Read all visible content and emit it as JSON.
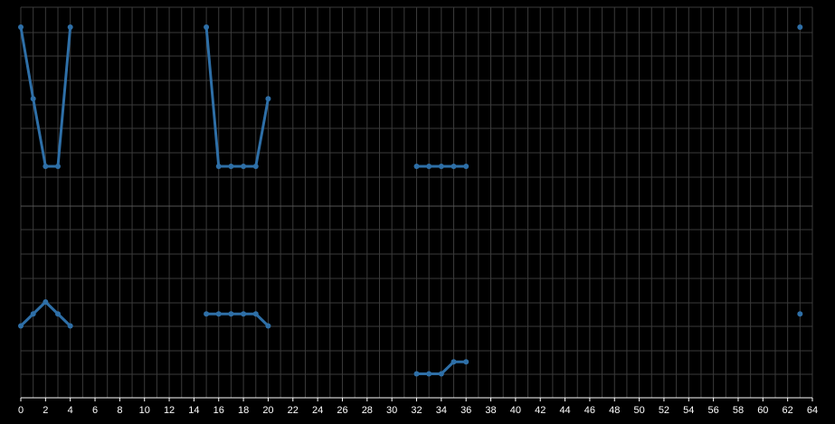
{
  "chart_data": [
    {
      "type": "line",
      "panel": "top",
      "xlim": [
        0,
        64
      ],
      "grid": true,
      "series": [
        {
          "segments": [
            [
              [
                0,
                5
              ],
              [
                1,
                3.2
              ],
              [
                2,
                1.5
              ],
              [
                3,
                1.5
              ],
              [
                4,
                5
              ]
            ],
            [
              [
                15,
                5
              ],
              [
                16,
                1.5
              ],
              [
                17,
                1.5
              ],
              [
                18,
                1.5
              ],
              [
                19,
                1.5
              ],
              [
                20,
                3.2
              ]
            ],
            [
              [
                32,
                1.5
              ],
              [
                33,
                1.5
              ],
              [
                34,
                1.5
              ],
              [
                35,
                1.5
              ],
              [
                36,
                1.5
              ]
            ],
            [
              [
                63,
                5
              ]
            ]
          ]
        }
      ]
    },
    {
      "type": "line",
      "panel": "bottom",
      "xlim": [
        0,
        64
      ],
      "grid": true,
      "xticks": [
        "0",
        "2",
        "4",
        "6",
        "8",
        "10",
        "12",
        "14",
        "16",
        "18",
        "20",
        "22",
        "24",
        "26",
        "28",
        "30",
        "32",
        "34",
        "36",
        "38",
        "40",
        "42",
        "44",
        "46",
        "48",
        "50",
        "52",
        "54",
        "56",
        "58",
        "60",
        "62",
        "64"
      ],
      "series": [
        {
          "segments": [
            [
              [
                0,
                3
              ],
              [
                1,
                3.5
              ],
              [
                2,
                4
              ],
              [
                3,
                3.5
              ],
              [
                4,
                3
              ]
            ],
            [
              [
                15,
                3.5
              ],
              [
                16,
                3.5
              ],
              [
                17,
                3.5
              ],
              [
                18,
                3.5
              ],
              [
                19,
                3.5
              ],
              [
                20,
                3
              ]
            ],
            [
              [
                32,
                1
              ],
              [
                33,
                1
              ],
              [
                34,
                1
              ],
              [
                35,
                1.5
              ],
              [
                36,
                1.5
              ]
            ],
            [
              [
                63,
                3.5
              ]
            ]
          ]
        }
      ]
    }
  ],
  "colors": {
    "line": "#2e6fa7",
    "grid": "#3a3a3a",
    "axis": "#ffffff",
    "background": "#000000"
  }
}
